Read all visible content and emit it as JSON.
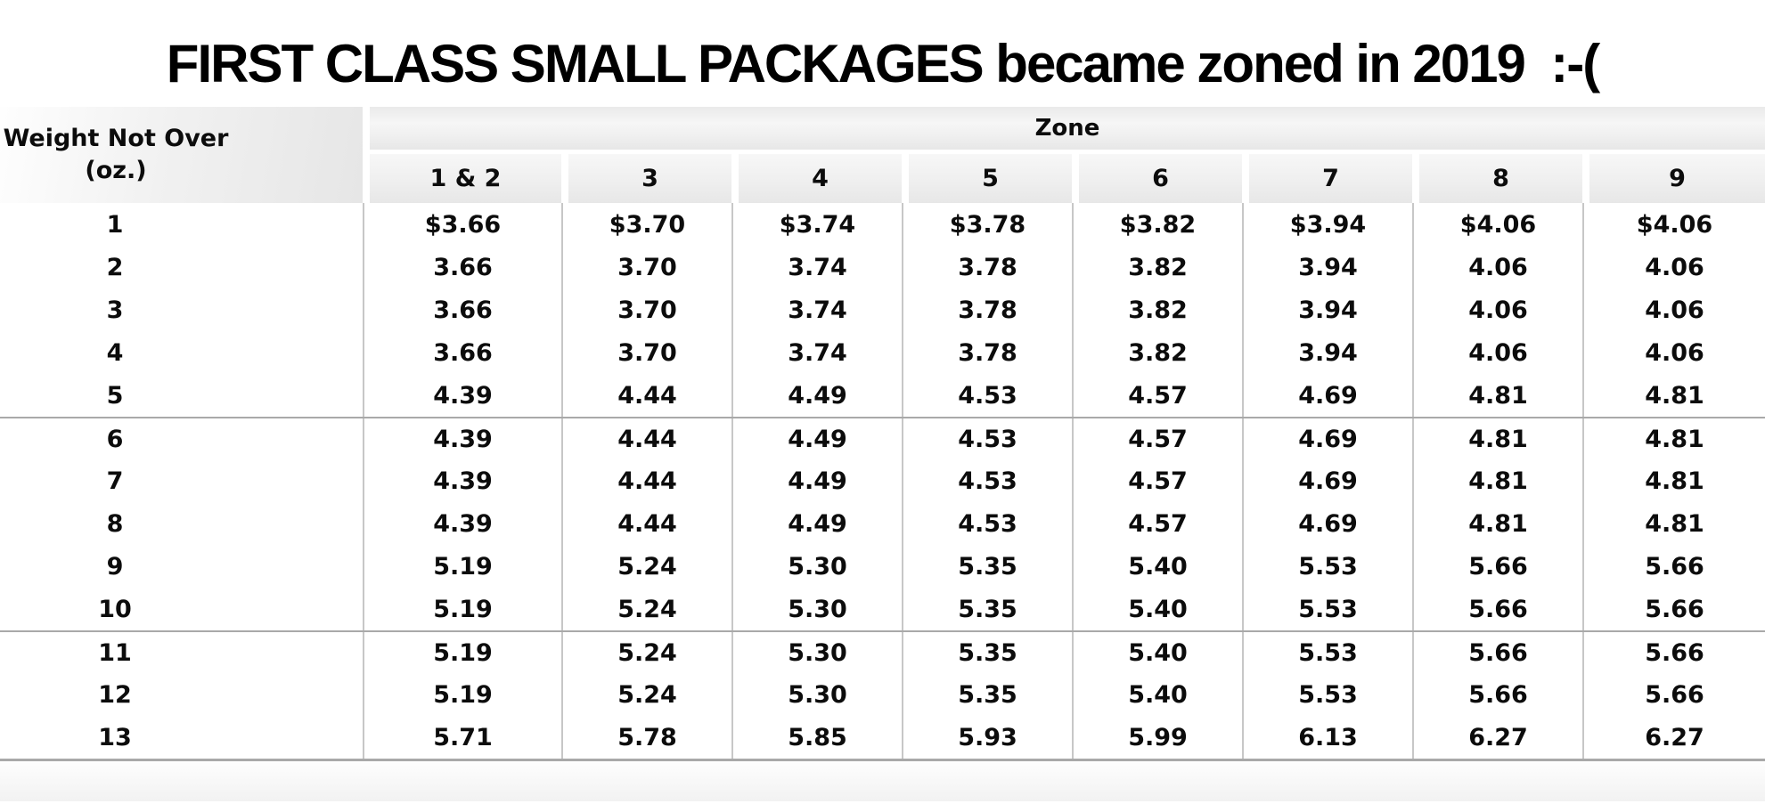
{
  "title": "FIRST CLASS SMALL PACKAGES became zoned in 2019  :-(",
  "table": {
    "weight_header_line1": "Weight Not Over",
    "weight_header_line2": "(oz.)",
    "zone_header": "Zone",
    "zone_columns": [
      "1 & 2",
      "3",
      "4",
      "5",
      "6",
      "7",
      "8",
      "9"
    ],
    "rows": [
      {
        "weight": "1",
        "prices": [
          "$3.66",
          "$3.70",
          "$3.74",
          "$3.78",
          "$3.82",
          "$3.94",
          "$4.06",
          "$4.06"
        ]
      },
      {
        "weight": "2",
        "prices": [
          "3.66",
          "3.70",
          "3.74",
          "3.78",
          "3.82",
          "3.94",
          "4.06",
          "4.06"
        ]
      },
      {
        "weight": "3",
        "prices": [
          "3.66",
          "3.70",
          "3.74",
          "3.78",
          "3.82",
          "3.94",
          "4.06",
          "4.06"
        ]
      },
      {
        "weight": "4",
        "prices": [
          "3.66",
          "3.70",
          "3.74",
          "3.78",
          "3.82",
          "3.94",
          "4.06",
          "4.06"
        ]
      },
      {
        "weight": "5",
        "prices": [
          "4.39",
          "4.44",
          "4.49",
          "4.53",
          "4.57",
          "4.69",
          "4.81",
          "4.81"
        ]
      },
      {
        "weight": "6",
        "prices": [
          "4.39",
          "4.44",
          "4.49",
          "4.53",
          "4.57",
          "4.69",
          "4.81",
          "4.81"
        ]
      },
      {
        "weight": "7",
        "prices": [
          "4.39",
          "4.44",
          "4.49",
          "4.53",
          "4.57",
          "4.69",
          "4.81",
          "4.81"
        ]
      },
      {
        "weight": "8",
        "prices": [
          "4.39",
          "4.44",
          "4.49",
          "4.53",
          "4.57",
          "4.69",
          "4.81",
          "4.81"
        ]
      },
      {
        "weight": "9",
        "prices": [
          "5.19",
          "5.24",
          "5.30",
          "5.35",
          "5.40",
          "5.53",
          "5.66",
          "5.66"
        ]
      },
      {
        "weight": "10",
        "prices": [
          "5.19",
          "5.24",
          "5.30",
          "5.35",
          "5.40",
          "5.53",
          "5.66",
          "5.66"
        ]
      },
      {
        "weight": "11",
        "prices": [
          "5.19",
          "5.24",
          "5.30",
          "5.35",
          "5.40",
          "5.53",
          "5.66",
          "5.66"
        ]
      },
      {
        "weight": "12",
        "prices": [
          "5.19",
          "5.24",
          "5.30",
          "5.35",
          "5.40",
          "5.53",
          "5.66",
          "5.66"
        ]
      },
      {
        "weight": "13",
        "prices": [
          "5.71",
          "5.78",
          "5.85",
          "5.93",
          "5.99",
          "6.13",
          "6.27",
          "6.27"
        ]
      }
    ],
    "group_separator_row_indexes": [
      5,
      10
    ]
  }
}
